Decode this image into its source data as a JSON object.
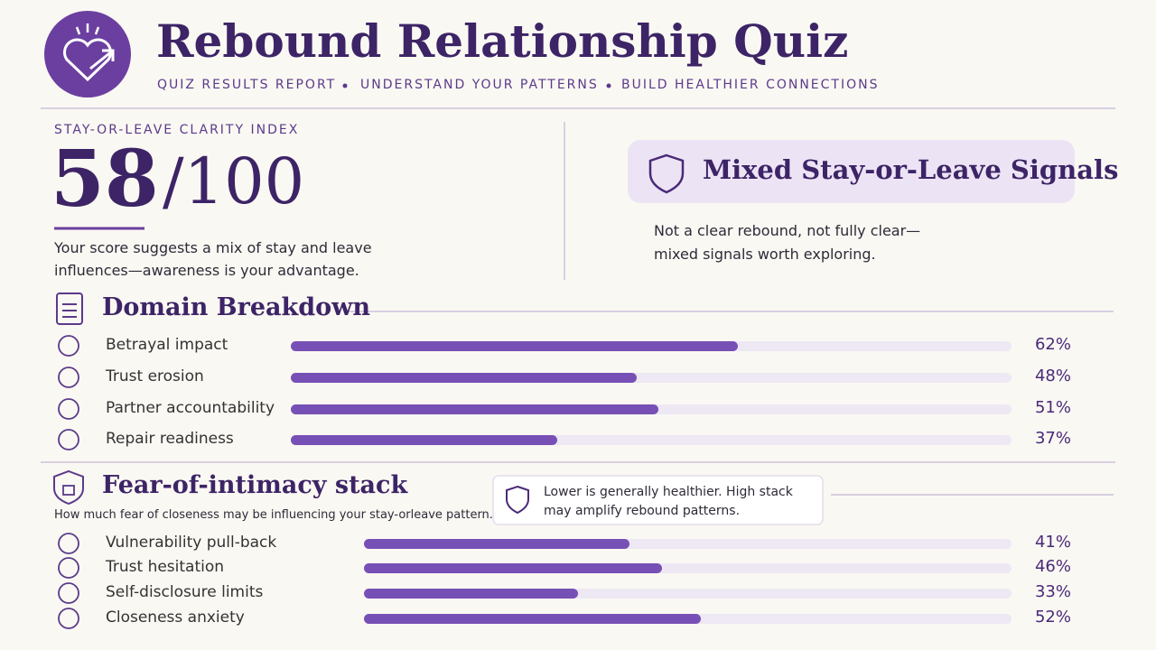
{
  "header": {
    "title": "Rebound Relationship Quiz",
    "subtitle_parts": [
      "QUIZ RESULTS REPORT",
      "UNDERSTAND YOUR PATTERNS",
      "BUILD HEALTHIER CONNECTIONS"
    ]
  },
  "score": {
    "label": "STAY-OR-LEAVE CLARITY INDEX",
    "value": 58,
    "scale": "/100",
    "description": "Your score suggests a mix of stay and leave influences—awareness is your advantage."
  },
  "verdict": {
    "title": "Mixed Stay-or-Leave Signals",
    "note": "Not a clear rebound, not fully clear—mixed signals worth exploring."
  },
  "domains": {
    "title": "Domain Breakdown",
    "xlim": [
      0,
      100
    ],
    "items": [
      "Betrayal impact",
      "Trust erosion",
      "Partner accountability",
      "Repair readiness"
    ],
    "values": [
      62,
      48,
      51,
      37
    ],
    "value_labels": [
      "62%",
      "48%",
      "51%",
      "37%"
    ]
  },
  "intimacy": {
    "title": "Fear-of-intimacy stack",
    "subtitle": "How much fear of closeness may be influencing your stay-orleave pattern.",
    "callout": "Lower is generally healthier. High stack may amplify rebound patterns.",
    "xlim": [
      0,
      100
    ],
    "items": [
      "Vulnerability pull-back",
      "Trust hesitation",
      "Self-disclosure limits",
      "Closeness anxiety"
    ],
    "values": [
      41,
      46,
      33,
      52
    ],
    "value_labels": [
      "41%",
      "46%",
      "33%",
      "52%"
    ]
  }
}
